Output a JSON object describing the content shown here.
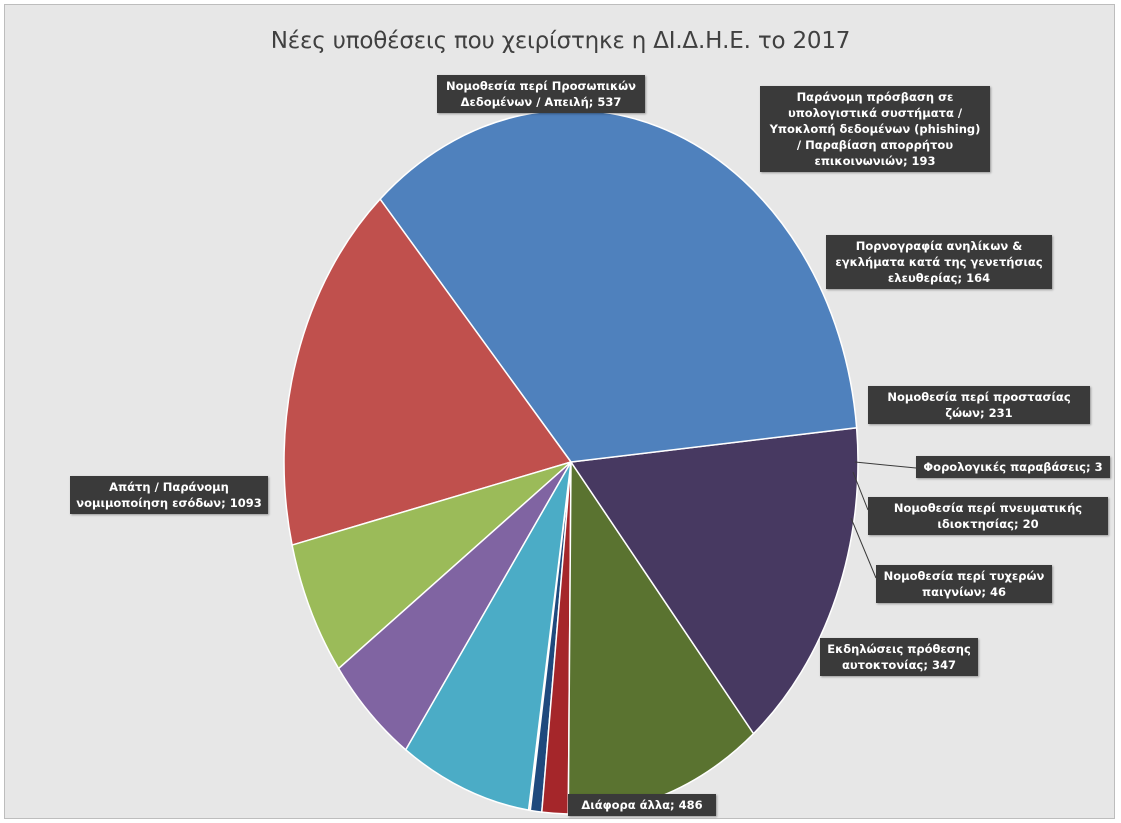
{
  "chart_data": {
    "type": "pie",
    "title": "Νέες υποθέσεις που χειρίστηκε η ΔΙ.Δ.Η.Ε. το 2017",
    "start_category": "Φορολογικές παραβάσεις",
    "direction": "clockwise",
    "slices": [
      {
        "label": "Φορολογικές παραβάσεις",
        "value": 3,
        "text": "Φορολογικές παραβάσεις; 3",
        "color": "#f79646"
      },
      {
        "label": "Νομοθεσία περί πνευματικής ιδιοκτησίας",
        "value": 20,
        "text": "Νομοθεσία περί πνευματικής ιδιοκτησίας; 20",
        "color": "#1f497d"
      },
      {
        "label": "Νομοθεσία περί τυχερών παιγνίων",
        "value": 46,
        "text": "Νομοθεσία περί τυχερών παιγνίων; 46",
        "color": "#a5262a"
      },
      {
        "label": "Εκδηλώσεις πρόθεσης αυτοκτονίας",
        "value": 347,
        "text": "Εκδηλώσεις πρόθεσης αυτοκτονίας; 347",
        "color": "#5a7330"
      },
      {
        "label": "Διάφορα άλλα",
        "value": 486,
        "text": "Διάφορα άλλα; 486",
        "color": "#473961"
      },
      {
        "label": "Απάτη / Παράνομη νομιμοποίηση εσόδων",
        "value": 1093,
        "text": "Απάτη / Παράνομη νομιμοποίηση εσόδων; 1093",
        "color": "#4f81bd"
      },
      {
        "label": "Νομοθεσία περί Προσωπικών Δεδομένων / Απειλή",
        "value": 537,
        "text": "Νομοθεσία περί Προσωπικών Δεδομένων / Απειλή; 537",
        "color": "#c0504d"
      },
      {
        "label": "Παράνομη πρόσβαση σε υπολογιστικά συστήματα / Υποκλοπή δεδομένων (phishing) / Παραβίαση απορρήτου επικοινωνιών",
        "value": 193,
        "text": "Παράνομη πρόσβαση σε υπολογιστικά συστήματα / Υποκλοπή δεδομένων (phishing) / Παραβίαση απορρήτου επικοινωνιών; 193",
        "color": "#9bbb59"
      },
      {
        "label": "Πορνογραφία ανηλίκων & εγκλήματα κατά της γενετήσιας ελευθερίας",
        "value": 164,
        "text": "Πορνογραφία ανηλίκων & εγκλήματα κατά της γενετήσιας ελευθερίας; 164",
        "color": "#8064a2"
      },
      {
        "label": "Νομοθεσία περί προστασίας ζώων",
        "value": 231,
        "text": "Νομοθεσία περί προστασίας ζώων; 231",
        "color": "#4bacc6"
      }
    ]
  }
}
